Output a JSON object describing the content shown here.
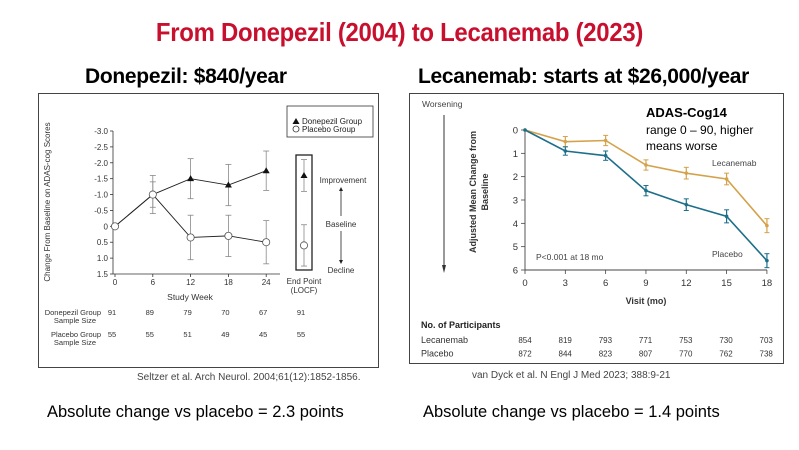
{
  "slide": {
    "title": "From Donepezil (2004) to Lecanemab (2023)",
    "left_heading": "Donepezil: $840/year",
    "right_heading": "Lecanemab: starts at $26,000/year",
    "left_footer": "Absolute change vs placebo = 2.3 points",
    "right_footer": "Absolute change vs placebo = 1.4 points",
    "left_citation": "Seltzer et al. Arch Neurol. 2004;61(12):1852-1856.",
    "right_citation": "van Dyck et al. N Engl J Med 2023; 388:9-21",
    "colors": {
      "title": "#c8102e",
      "lecanemab": "#d4a24a",
      "placebo": "#1d6f8a"
    }
  },
  "chart_data": [
    {
      "type": "line",
      "xlabel": "Study Week",
      "ylabel": "Change From Baseline on ADAS-cog Scores",
      "categories": [
        "0",
        "6",
        "12",
        "18",
        "24",
        "End Point (LOCF)"
      ],
      "yticks": [
        "-3.0",
        "-2.5",
        "-2.0",
        "-1.5",
        "-1.0",
        "-0.5",
        "0",
        "0.5",
        "1.0",
        "1.5"
      ],
      "ylim": [
        -3.0,
        1.5
      ],
      "y_inverted": true,
      "legend_position": "top-right",
      "annotations": {
        "improvement": "Improvement",
        "baseline": "Baseline",
        "decline": "Decline"
      },
      "series": [
        {
          "name": "Donepezil Group",
          "marker": "filled-triangle",
          "values": [
            0,
            -1.0,
            -1.5,
            -1.3,
            -1.75,
            -1.6
          ],
          "error": [
            0,
            0.6,
            0.63,
            0.65,
            0.62,
            0.5
          ]
        },
        {
          "name": "Placebo Group",
          "marker": "open-circle",
          "values": [
            0,
            -1.0,
            0.35,
            0.3,
            0.5,
            0.6
          ],
          "error": [
            0,
            0.4,
            0.7,
            0.65,
            0.68,
            0.65
          ]
        }
      ],
      "sample_size": {
        "rows": [
          {
            "label": "Donepezil Group Sample Size",
            "values": [
              "91",
              "89",
              "79",
              "70",
              "67",
              "91"
            ]
          },
          {
            "label": "Placebo Group Sample Size",
            "values": [
              "55",
              "55",
              "51",
              "49",
              "45",
              "55"
            ]
          }
        ]
      }
    },
    {
      "type": "line",
      "xlabel": "Visit (mo)",
      "ylabel": "Adjusted Mean Change from Baseline",
      "x": [
        0,
        3,
        6,
        9,
        12,
        15,
        18
      ],
      "xticks": [
        "0",
        "3",
        "6",
        "9",
        "12",
        "15",
        "18"
      ],
      "yticks": [
        "0",
        "1",
        "2",
        "3",
        "4",
        "5",
        "6"
      ],
      "ylim": [
        0,
        6
      ],
      "y_inverted": true,
      "direction_label": "Worsening",
      "note_title": "ADAS-Cog14",
      "note_text": "range 0 – 90, higher means worse",
      "pvalue": "P<0.001 at 18 mo",
      "series": [
        {
          "name": "Lecanemab",
          "color": "#d4a24a",
          "values": [
            0,
            0.5,
            0.45,
            1.5,
            1.85,
            2.1,
            4.1
          ],
          "error": [
            0,
            0.22,
            0.22,
            0.22,
            0.25,
            0.25,
            0.3
          ]
        },
        {
          "name": "Placebo",
          "color": "#1d6f8a",
          "values": [
            0,
            0.9,
            1.1,
            2.6,
            3.2,
            3.7,
            5.6
          ],
          "error": [
            0,
            0.18,
            0.2,
            0.22,
            0.25,
            0.28,
            0.3
          ]
        }
      ],
      "participants": {
        "title": "No. of Participants",
        "rows": [
          {
            "label": "Lecanemab",
            "values": [
              "854",
              "819",
              "793",
              "771",
              "753",
              "730",
              "703"
            ]
          },
          {
            "label": "Placebo",
            "values": [
              "872",
              "844",
              "823",
              "807",
              "770",
              "762",
              "738"
            ]
          }
        ]
      }
    }
  ]
}
